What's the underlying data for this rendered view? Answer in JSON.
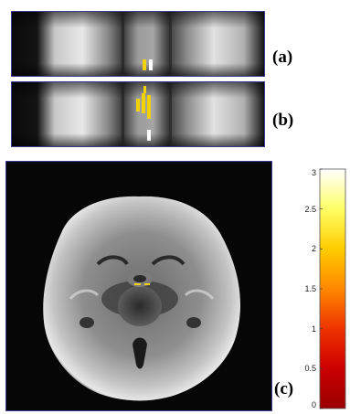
{
  "panels": {
    "a": {
      "label": "(a)"
    },
    "b": {
      "label": "(b)"
    },
    "c": {
      "label": "(c)"
    }
  },
  "colorbar": {
    "ticks": [
      "3",
      "2.5",
      "2",
      "1.5",
      "1",
      "0.5",
      "0"
    ],
    "gradient": [
      "#ffffff",
      "#ffff66",
      "#ffcc00",
      "#ff8800",
      "#ee3300",
      "#cc0000",
      "#990000"
    ]
  },
  "colors": {
    "activation": "#f2d200",
    "highlight": "#ffffff"
  }
}
